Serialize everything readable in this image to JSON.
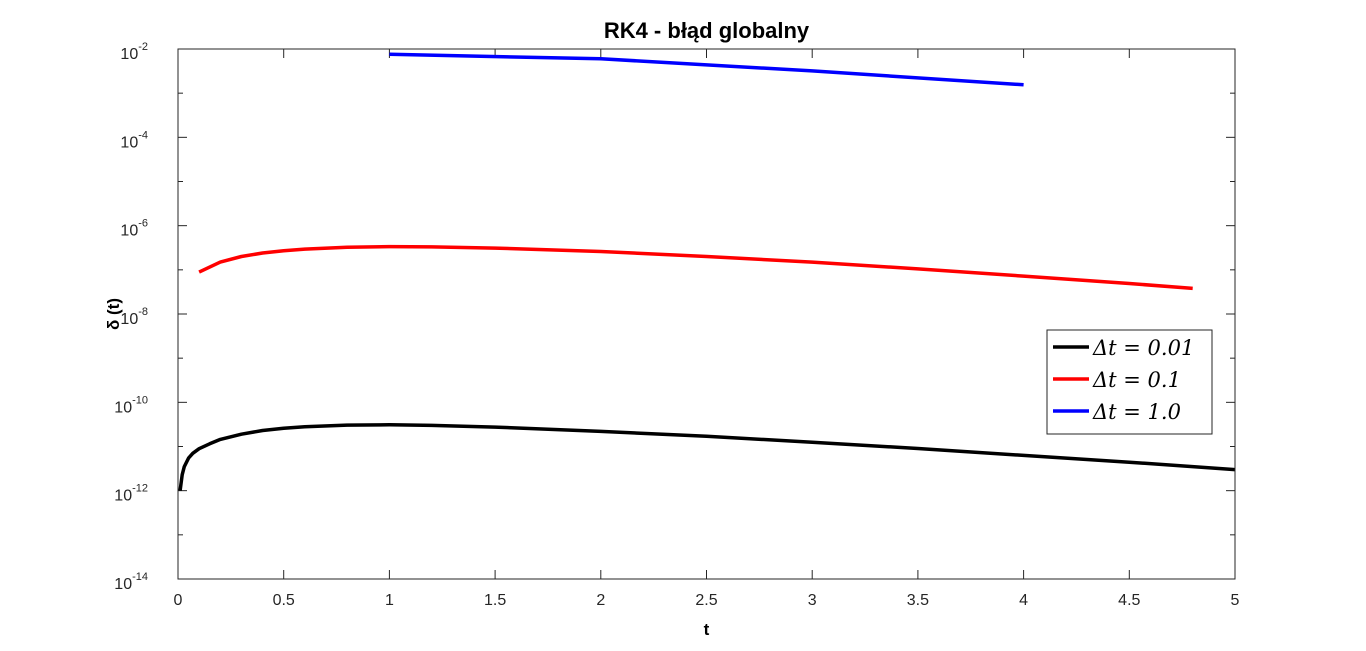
{
  "chart_data": {
    "type": "line",
    "title": "RK4 - błąd globalny",
    "xlabel": "t",
    "ylabel": "δ (t)",
    "xlim": [
      0,
      5
    ],
    "ylim": [
      1e-14,
      0.01
    ],
    "yscale": "log",
    "x_ticks": [
      "0",
      "0.5",
      "1",
      "1.5",
      "2",
      "2.5",
      "3",
      "3.5",
      "4",
      "4.5",
      "5"
    ],
    "y_ticks": [
      {
        "base": "10",
        "exp": "-2"
      },
      {
        "base": "10",
        "exp": "-4"
      },
      {
        "base": "10",
        "exp": "-6"
      },
      {
        "base": "10",
        "exp": "-8"
      },
      {
        "base": "10",
        "exp": "-10"
      },
      {
        "base": "10",
        "exp": "-12"
      },
      {
        "base": "10",
        "exp": "-14"
      }
    ],
    "legend_position": "right",
    "series": [
      {
        "name": "Δt = 0.01",
        "color": "#000000",
        "x": [
          0.01,
          0.02,
          0.03,
          0.05,
          0.07,
          0.1,
          0.15,
          0.2,
          0.3,
          0.4,
          0.5,
          0.6,
          0.8,
          1.0,
          1.2,
          1.5,
          2.0,
          2.5,
          3.0,
          3.5,
          4.0,
          4.5,
          5.0
        ],
        "y": [
          1e-12,
          2.3e-12,
          3.5e-12,
          5.5e-12,
          7e-12,
          8.9e-12,
          1.15e-11,
          1.45e-11,
          1.9e-11,
          2.3e-11,
          2.6e-11,
          2.8e-11,
          3.05e-11,
          3.1e-11,
          3e-11,
          2.75e-11,
          2.2e-11,
          1.7e-11,
          1.25e-11,
          9e-12,
          6.3e-12,
          4.4e-12,
          3e-12
        ]
      },
      {
        "name": "Δt = 0.1",
        "color": "#ff0000",
        "x": [
          0.1,
          0.2,
          0.3,
          0.4,
          0.5,
          0.6,
          0.8,
          1.0,
          1.2,
          1.5,
          2.0,
          2.5,
          3.0,
          3.5,
          4.0,
          4.5,
          4.8
        ],
        "y": [
          8.9e-08,
          1.5e-07,
          2e-07,
          2.4e-07,
          2.7e-07,
          2.95e-07,
          3.25e-07,
          3.35e-07,
          3.3e-07,
          3.1e-07,
          2.6e-07,
          2e-07,
          1.5e-07,
          1.05e-07,
          7.2e-08,
          4.9e-08,
          3.8e-08
        ]
      },
      {
        "name": "Δt = 1.0",
        "color": "#0000ff",
        "x": [
          1.0,
          2.0,
          3.0,
          4.0
        ],
        "y": [
          0.0076,
          0.006,
          0.0032,
          0.00155
        ]
      }
    ]
  }
}
